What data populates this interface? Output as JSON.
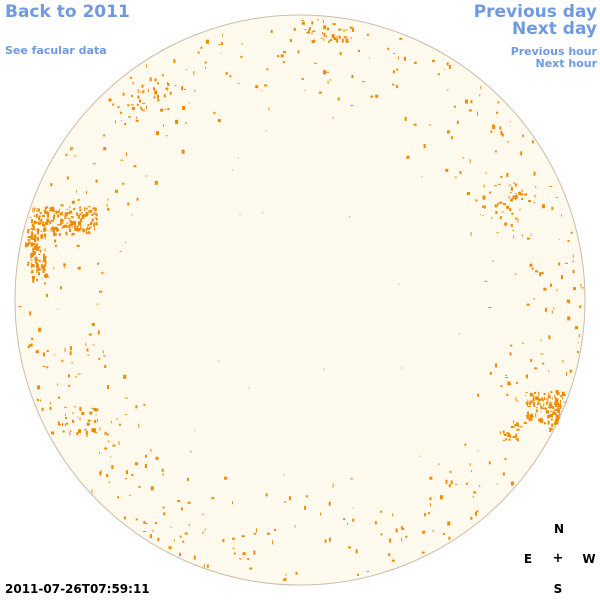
{
  "nav": {
    "back_label": "Back to 2011",
    "facular_label": "See facular data",
    "prev_day_label": "Previous day",
    "next_day_label": "Next day",
    "prev_hour_label": "Previous hour",
    "next_hour_label": "Next hour"
  },
  "timestamp": "2011-07-26T07:59:11",
  "compass": {
    "north": "N",
    "south": "S",
    "east": "E",
    "west": "W",
    "center": "+"
  },
  "colors": {
    "link": "#6f9ae0",
    "disk_fill": "#fff9ee",
    "disk_stroke": "#c9bda8",
    "facula": "#f08a00"
  }
}
